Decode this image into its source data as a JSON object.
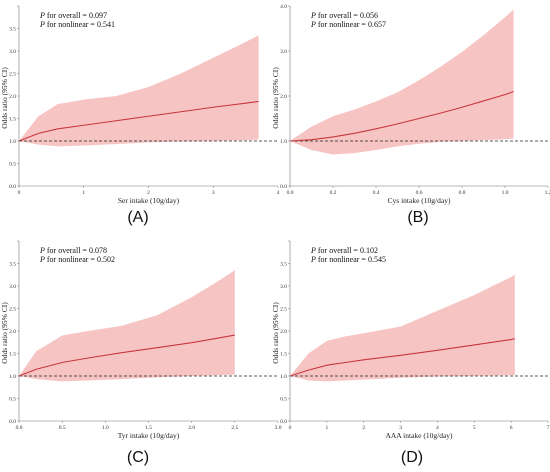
{
  "style": {
    "band_color": "#f7c4c4",
    "line_color": "#c8383c",
    "ref_color": "#222222",
    "axis_color": "#777777"
  },
  "chart_data": [
    {
      "type": "line",
      "tag": "(A)",
      "xlabel": "Ser intake (10g/day)",
      "ylabel": "Odds ratio (95% CI)",
      "annotations": [
        {
          "p": "P",
          "text": " for overall = 0.097"
        },
        {
          "p": "P",
          "text": " for nonlinear = 0.541"
        }
      ],
      "xlim": [
        0,
        4
      ],
      "xticks": [
        0,
        1,
        2,
        3,
        4
      ],
      "xtick_labels": [
        "0",
        "1",
        "2",
        "3",
        "4"
      ],
      "ylim": [
        0,
        4.0
      ],
      "yticks": [
        0,
        0.5,
        1.0,
        1.5,
        2.0,
        2.5,
        3.0,
        3.5,
        4.0
      ],
      "ytick_labels": [
        "0.0",
        "0.5",
        "1.0",
        "1.5",
        "2.0",
        "2.5",
        "3.0",
        "3.5",
        ""
      ],
      "reference_y": 1.0,
      "series": [
        {
          "x": [
            0,
            0.3,
            0.6,
            1.0,
            1.5,
            2.0,
            2.5,
            3.0,
            3.5,
            3.7
          ],
          "y": [
            1.0,
            1.17,
            1.27,
            1.35,
            1.45,
            1.55,
            1.65,
            1.75,
            1.84,
            1.88
          ],
          "lower": [
            1.0,
            0.92,
            0.88,
            0.9,
            0.93,
            0.97,
            0.99,
            1.0,
            1.02,
            1.03
          ],
          "upper": [
            1.0,
            1.55,
            1.82,
            1.92,
            2.0,
            2.2,
            2.5,
            2.85,
            3.2,
            3.35
          ]
        }
      ]
    },
    {
      "type": "line",
      "tag": "(B)",
      "xlabel": "Cys intake (10g/day)",
      "ylabel": "Odds ratio (95% CI)",
      "annotations": [
        {
          "p": "P",
          "text": " for overall = 0.056"
        },
        {
          "p": "P",
          "text": " for nonlinear = 0.657"
        }
      ],
      "xlim": [
        0,
        1.2
      ],
      "xticks": [
        0,
        0.2,
        0.4,
        0.6,
        0.8,
        1.0,
        1.2
      ],
      "xtick_labels": [
        "0.0",
        "0.2",
        "0.4",
        "0.6",
        "0.8",
        "1.0",
        "1.2"
      ],
      "ylim": [
        0,
        4.0
      ],
      "yticks": [
        0,
        1.0,
        2.0,
        3.0,
        4.0
      ],
      "ytick_labels": [
        "0.0",
        "1.0",
        "2.0",
        "3.0",
        "4.0"
      ],
      "reference_y": 1.0,
      "series": [
        {
          "x": [
            0,
            0.1,
            0.2,
            0.3,
            0.4,
            0.5,
            0.6,
            0.7,
            0.8,
            0.9,
            1.0,
            1.04
          ],
          "y": [
            1.0,
            1.03,
            1.09,
            1.17,
            1.27,
            1.38,
            1.5,
            1.62,
            1.75,
            1.89,
            2.03,
            2.1
          ],
          "lower": [
            1.0,
            0.8,
            0.7,
            0.73,
            0.8,
            0.88,
            0.94,
            0.98,
            1.0,
            1.02,
            1.04,
            1.05
          ],
          "upper": [
            1.0,
            1.32,
            1.55,
            1.7,
            1.88,
            2.08,
            2.35,
            2.65,
            2.98,
            3.35,
            3.75,
            3.92
          ]
        }
      ]
    },
    {
      "type": "line",
      "tag": "(C)",
      "xlabel": "Tyr intake (10g/day)",
      "ylabel": "Odds ratio (95% CI)",
      "annotations": [
        {
          "p": "P",
          "text": " for overall = 0.078"
        },
        {
          "p": "P",
          "text": " for nonlinear = 0.502"
        }
      ],
      "xlim": [
        0,
        3.0
      ],
      "xticks": [
        0,
        0.5,
        1.0,
        1.5,
        2.0,
        2.5,
        3.0
      ],
      "xtick_labels": [
        "0.0",
        "0.5",
        "1.0",
        "1.5",
        "2.0",
        "2.5",
        "3.0"
      ],
      "ylim": [
        0,
        4.0
      ],
      "yticks": [
        0,
        0.5,
        1.0,
        1.5,
        2.0,
        2.5,
        3.0,
        3.5,
        4.0
      ],
      "ytick_labels": [
        "0.0",
        "0.5",
        "1.0",
        "1.5",
        "2.0",
        "2.5",
        "3.0",
        "3.5",
        ""
      ],
      "reference_y": 1.0,
      "series": [
        {
          "x": [
            0,
            0.2,
            0.5,
            0.8,
            1.2,
            1.6,
            2.0,
            2.3,
            2.5
          ],
          "y": [
            1.0,
            1.15,
            1.3,
            1.4,
            1.52,
            1.63,
            1.74,
            1.84,
            1.91
          ],
          "lower": [
            1.0,
            0.93,
            0.88,
            0.9,
            0.93,
            0.97,
            1.0,
            1.02,
            1.03
          ],
          "upper": [
            1.0,
            1.55,
            1.9,
            2.0,
            2.12,
            2.35,
            2.75,
            3.1,
            3.35
          ]
        }
      ]
    },
    {
      "type": "line",
      "tag": "(D)",
      "xlabel": "AAA intake (10g/day)",
      "ylabel": "Odds ratio (95% CI)",
      "annotations": [
        {
          "p": "P",
          "text": " for overall = 0.102"
        },
        {
          "p": "P",
          "text": " for nonlinear = 0.545"
        }
      ],
      "xlim": [
        0,
        7
      ],
      "xticks": [
        0,
        1,
        2,
        3,
        4,
        5,
        6,
        7
      ],
      "xtick_labels": [
        "0",
        "1",
        "2",
        "3",
        "4",
        "5",
        "6",
        "7"
      ],
      "ylim": [
        0,
        4.0
      ],
      "yticks": [
        0,
        0.5,
        1.0,
        1.5,
        2.0,
        2.5,
        3.0,
        3.5,
        4.0
      ],
      "ytick_labels": [
        "0.0",
        "0.5",
        "1.0",
        "1.5",
        "2.0",
        "2.5",
        "3.0",
        "3.5",
        ""
      ],
      "reference_y": 1.0,
      "series": [
        {
          "x": [
            0,
            0.5,
            1.0,
            1.5,
            2.0,
            3.0,
            4.0,
            5.0,
            6.0,
            6.1
          ],
          "y": [
            1.0,
            1.13,
            1.24,
            1.3,
            1.36,
            1.46,
            1.57,
            1.69,
            1.81,
            1.83
          ],
          "lower": [
            1.0,
            0.9,
            0.88,
            0.9,
            0.92,
            0.96,
            0.99,
            1.0,
            1.02,
            1.02
          ],
          "upper": [
            1.0,
            1.5,
            1.78,
            1.88,
            1.95,
            2.1,
            2.45,
            2.8,
            3.2,
            3.25
          ]
        }
      ]
    }
  ]
}
